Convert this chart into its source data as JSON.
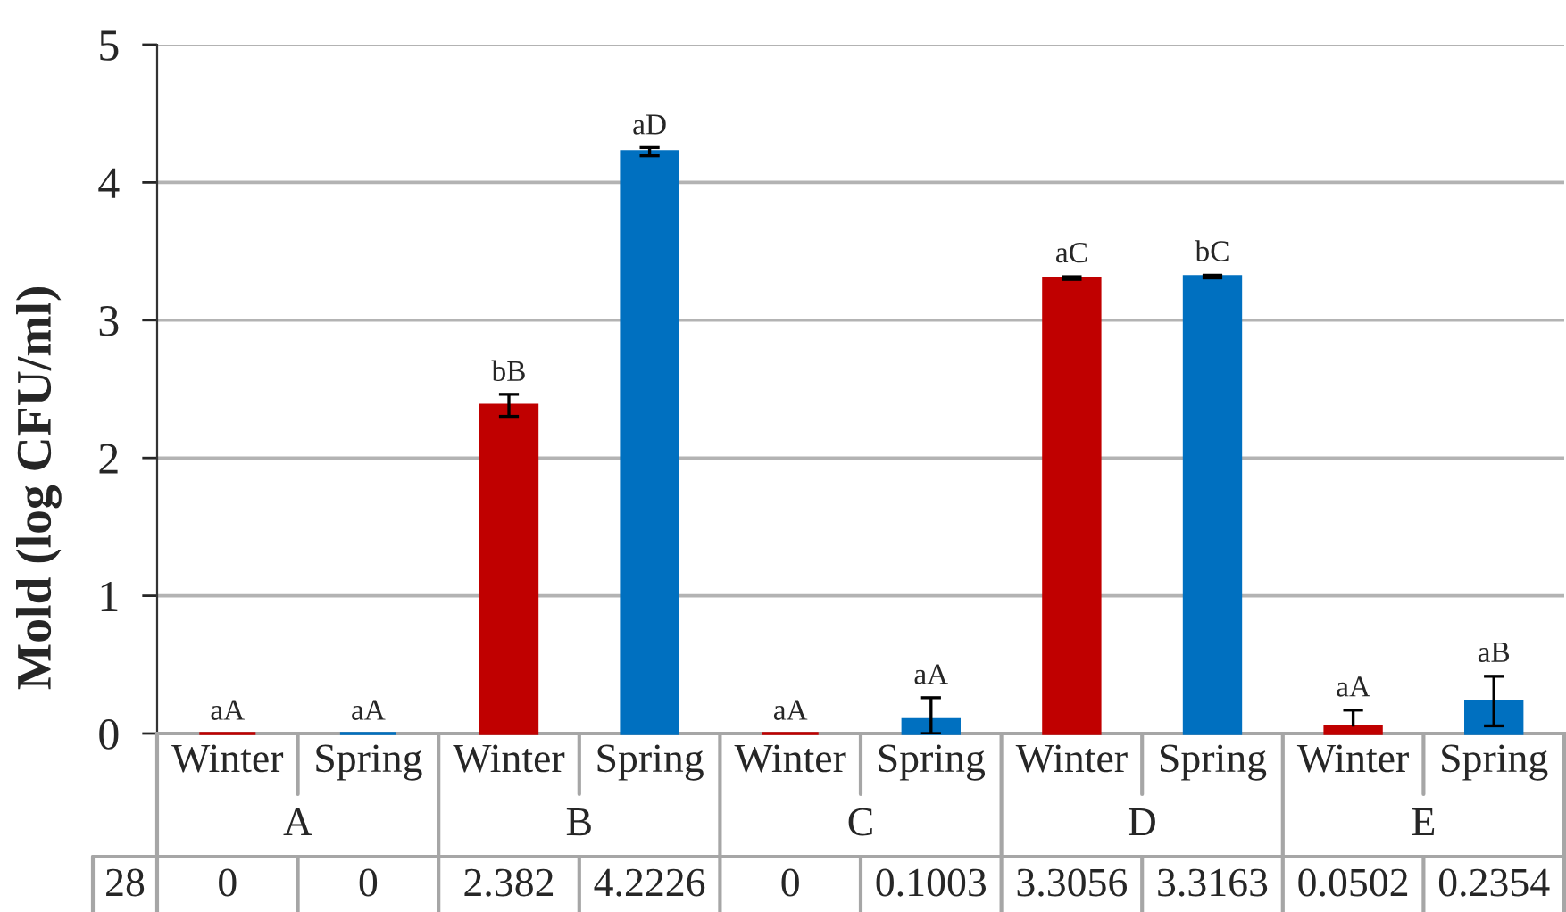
{
  "chart_data": {
    "type": "bar",
    "ylabel": "Mold (log CFU/ml)",
    "categories": [
      "Winter",
      "Spring",
      "Winter",
      "Spring",
      "Winter",
      "Spring",
      "Winter",
      "Spring",
      "Winter",
      "Spring"
    ],
    "series": [
      {
        "name": "28",
        "colors": [
          "#c00000",
          "#0070c0",
          "#c00000",
          "#0070c0",
          "#c00000",
          "#0070c0",
          "#c00000",
          "#0070c0",
          "#c00000",
          "#0070c0"
        ],
        "values": [
          0,
          0,
          2.382,
          4.2226,
          0,
          0.1003,
          3.3056,
          3.3163,
          0.0502,
          0.2354
        ],
        "errors": [
          null,
          null,
          0.08,
          0.03,
          null,
          [
            0,
            0.26
          ],
          0.01,
          0.01,
          [
            0.0502,
            0.17
          ],
          0.18
        ]
      }
    ],
    "ylim": [
      0,
      5
    ],
    "yticks": [
      0,
      1,
      2,
      3,
      4,
      5
    ],
    "grid": "y",
    "data_labels": true,
    "annotations": [
      {
        "text": "aA",
        "y": 0
      },
      {
        "text": "aA",
        "y": 0
      },
      {
        "text": "bB",
        "y": 2.46
      },
      {
        "text": "aD",
        "y": 4.25
      },
      {
        "text": "aA",
        "y": 0
      },
      {
        "text": "aA",
        "y": 0.26
      },
      {
        "text": "aC",
        "y": 3.32
      },
      {
        "text": "bC",
        "y": 3.33
      },
      {
        "text": "aA",
        "y": 0.17
      },
      {
        "text": "aB",
        "y": 0.42
      },
      "A",
      "B",
      "C",
      "D",
      "E"
    ]
  }
}
